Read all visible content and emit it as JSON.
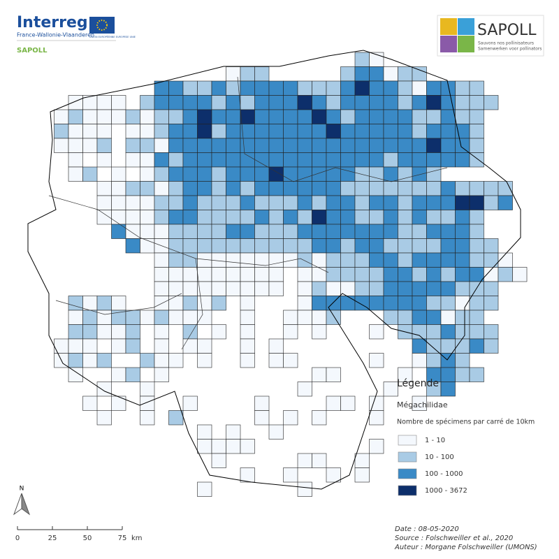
{
  "header": {
    "logo_title": "Interreg",
    "logo_subtitle": "France-Wallonie-Vlaanderen",
    "eu_text": "UNION EUROPÉENNE EUROPESE UNIE",
    "project": "SAPOLL"
  },
  "sapoll_logo": {
    "title": "SAPOLL",
    "line1": "Sauvons nos pollinisateurs",
    "line2": "Samenwerken voor pollinators"
  },
  "map": {
    "grid": {
      "rows": [
        "......................21",
        ".............122.....233122",
        "........33223233332223433213322",
        "..1111.2333323233343233332343222",
        ".121112122343343333432333322322",
        ".2111.1123342333333343333323332",
        ".1112.2213333333333333333334332",
        "..1.1.1132333333333333332333332",
        "..12.1.123332333433333223232",
        "....11221233232333333222222232222",
        "....11112232223222323323323334423",
        "....111123322223232433223232232",
        ".....31112222332223333333223332",
        "......31122222222223323322223322",
        "........1221111111212223323333221",
        "........111111111.1122223323233121",
        "........111111111.12112233333222",
        "..2121..11212.1...13333333322122",
        "..1212212111..1..1112...2233122",
        "..22112.1.2.1.1..1.1...1.2223222",
        ".111.12.1.11..1.1.........322232",
        ".1212..211.1..1.11.....1..1232",
        "..1..12.1..........11....1.3322",
        "....1..1..........1.....1..23",
        "...1.1.1..1....1....11.1..1",
        "....1..1.2.....1.1.1...1",
        "...........1.1..1",
        "...........1111........1",
        "............1.....11..1",
        "..............1..1..1.1",
        "...........1......1"
      ]
    }
  },
  "legend": {
    "title": "Légende",
    "taxon": "Mégachilidae",
    "subtitle": "Nombre de spécimens par carré de 10km",
    "classes": [
      {
        "label": "1 - 10",
        "color": "#f4f8fd"
      },
      {
        "label": "10 - 100",
        "color": "#a9cbe5"
      },
      {
        "label": "100 - 1000",
        "color": "#3a8ac6"
      },
      {
        "label": "1000 - 3672",
        "color": "#0d2f6b"
      }
    ]
  },
  "north": "N",
  "scale": {
    "labels": [
      0,
      25,
      50,
      75
    ],
    "unit": "km"
  },
  "credits": [
    "Date : 08-05-2020",
    "Source : Folschweiller et al., 2020",
    "Auteur : Morgane Folschweiller (UMONS)"
  ]
}
